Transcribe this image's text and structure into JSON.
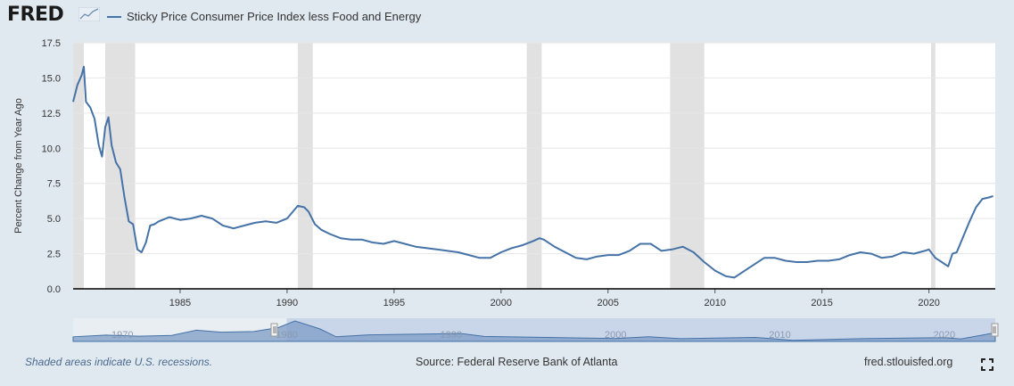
{
  "header": {
    "logo_text": "FRED",
    "legend_label": "Sticky Price Consumer Price Index less Food and Energy"
  },
  "footer": {
    "recession_note": "Shaded areas indicate U.S. recessions.",
    "source": "Source: Federal Reserve Bank of Atlanta",
    "site": "fred.stlouisfed.org"
  },
  "colors": {
    "line": "#4572a7",
    "recession": "#e1e1e1",
    "plot_bg": "#ffffff",
    "page_bg": "#e1e9f0"
  },
  "chart_data": {
    "type": "line",
    "title": "Sticky Price Consumer Price Index less Food and Energy",
    "ylabel": "Percent Change from Year Ago",
    "xlabel": "",
    "xlim": [
      1980.0,
      2023.1
    ],
    "ylim": [
      0,
      17.5
    ],
    "yticks": [
      0.0,
      2.5,
      5.0,
      7.5,
      10.0,
      12.5,
      15.0,
      17.5
    ],
    "ytick_labels": [
      "0.0",
      "2.5",
      "5.0",
      "7.5",
      "10.0",
      "12.5",
      "15.0",
      "17.5"
    ],
    "xticks": [
      1985,
      1990,
      1995,
      2000,
      2005,
      2010,
      2015,
      2020
    ],
    "xtick_labels": [
      "1985",
      "1990",
      "1995",
      "2000",
      "2005",
      "2010",
      "2015",
      "2020"
    ],
    "recessions": [
      [
        1980.0,
        1980.5
      ],
      [
        1981.5,
        1982.9
      ],
      [
        1990.5,
        1991.2
      ],
      [
        2001.2,
        2001.9
      ],
      [
        2007.9,
        2009.5
      ],
      [
        2020.1,
        2020.3
      ]
    ],
    "series": [
      {
        "name": "Sticky Price Consumer Price Index less Food and Energy",
        "x": [
          1980.0,
          1980.2,
          1980.4,
          1980.5,
          1980.6,
          1980.8,
          1981.0,
          1981.2,
          1981.35,
          1981.5,
          1981.65,
          1981.8,
          1982.0,
          1982.2,
          1982.4,
          1982.6,
          1982.8,
          1983.0,
          1983.2,
          1983.4,
          1983.6,
          1983.8,
          1984.0,
          1984.5,
          1985.0,
          1985.5,
          1986.0,
          1986.5,
          1987.0,
          1987.5,
          1988.0,
          1988.5,
          1989.0,
          1989.5,
          1990.0,
          1990.5,
          1990.8,
          1991.0,
          1991.3,
          1991.6,
          1992.0,
          1992.5,
          1993.0,
          1993.5,
          1994.0,
          1994.5,
          1995.0,
          1995.5,
          1996.0,
          1996.5,
          1997.0,
          1997.5,
          1998.0,
          1998.5,
          1999.0,
          1999.5,
          2000.0,
          2000.5,
          2001.0,
          2001.5,
          2001.8,
          2002.0,
          2002.5,
          2003.0,
          2003.5,
          2004.0,
          2004.5,
          2005.0,
          2005.5,
          2006.0,
          2006.5,
          2007.0,
          2007.5,
          2008.0,
          2008.5,
          2009.0,
          2009.5,
          2010.0,
          2010.5,
          2010.9,
          2011.3,
          2011.8,
          2012.3,
          2012.8,
          2013.3,
          2013.8,
          2014.3,
          2014.8,
          2015.3,
          2015.8,
          2016.3,
          2016.8,
          2017.3,
          2017.8,
          2018.3,
          2018.8,
          2019.3,
          2019.8,
          2020.0,
          2020.3,
          2020.6,
          2020.9,
          2021.1,
          2021.3,
          2021.6,
          2021.9,
          2022.2,
          2022.5,
          2022.8,
          2023.0
        ],
        "values": [
          13.3,
          14.5,
          15.2,
          15.8,
          13.3,
          12.9,
          12.1,
          10.2,
          9.4,
          11.5,
          12.2,
          10.2,
          9.0,
          8.5,
          6.5,
          4.8,
          4.6,
          2.8,
          2.6,
          3.3,
          4.5,
          4.6,
          4.8,
          5.1,
          4.9,
          5.0,
          5.2,
          5.0,
          4.5,
          4.3,
          4.5,
          4.7,
          4.8,
          4.7,
          5.0,
          5.9,
          5.8,
          5.5,
          4.6,
          4.2,
          3.9,
          3.6,
          3.5,
          3.5,
          3.3,
          3.2,
          3.4,
          3.2,
          3.0,
          2.9,
          2.8,
          2.7,
          2.6,
          2.4,
          2.2,
          2.2,
          2.6,
          2.9,
          3.1,
          3.4,
          3.6,
          3.5,
          3.0,
          2.6,
          2.2,
          2.1,
          2.3,
          2.4,
          2.4,
          2.7,
          3.2,
          3.2,
          2.7,
          2.8,
          3.0,
          2.6,
          1.9,
          1.3,
          0.9,
          0.8,
          1.2,
          1.7,
          2.2,
          2.2,
          2.0,
          1.9,
          1.9,
          2.0,
          2.0,
          2.1,
          2.4,
          2.6,
          2.5,
          2.2,
          2.3,
          2.6,
          2.5,
          2.7,
          2.8,
          2.2,
          1.9,
          1.6,
          2.5,
          2.6,
          3.7,
          4.8,
          5.8,
          6.4,
          6.5,
          6.6
        ]
      }
    ],
    "navigator": {
      "labels": [
        "1970",
        "1980",
        "1990",
        "2000",
        "2010",
        "2020"
      ],
      "label_years": [
        1970,
        1980,
        1990,
        2000,
        2010,
        2020
      ],
      "range": [
        1967.0,
        2023.1
      ],
      "selected": [
        1980.0,
        2023.1
      ]
    }
  }
}
